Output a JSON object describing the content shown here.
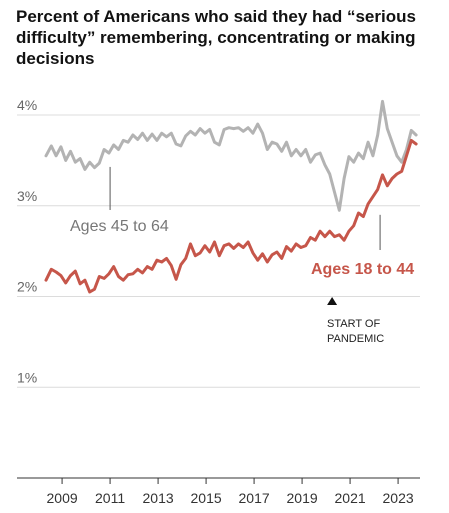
{
  "chart_data": {
    "type": "line",
    "title": "Percent of Americans who said they had “serious difficulty” remembering, concentrating or making decisions",
    "xlabel": "",
    "ylabel": "",
    "xlim": [
      2008.33,
      2023.83
    ],
    "ylim": [
      0,
      4
    ],
    "y_ticks": [
      {
        "value": 1,
        "label": "1%"
      },
      {
        "value": 2,
        "label": "2%"
      },
      {
        "value": 3,
        "label": "3%"
      },
      {
        "value": 4,
        "label": "4%"
      }
    ],
    "x_ticks": [
      {
        "value": 2009,
        "label": "2009"
      },
      {
        "value": 2011,
        "label": "2011"
      },
      {
        "value": 2013,
        "label": "2013"
      },
      {
        "value": 2015,
        "label": "2015"
      },
      {
        "value": 2017,
        "label": "2017"
      },
      {
        "value": 2019,
        "label": "2019"
      },
      {
        "value": 2021,
        "label": "2021"
      },
      {
        "value": 2023,
        "label": "2023"
      }
    ],
    "grid": true,
    "series": [
      {
        "name": "Ages 45 to 64",
        "color": "#b3b3b3",
        "points": [
          [
            2008.33,
            3.55
          ],
          [
            2008.55,
            3.66
          ],
          [
            2008.75,
            3.55
          ],
          [
            2008.95,
            3.65
          ],
          [
            2009.15,
            3.5
          ],
          [
            2009.35,
            3.6
          ],
          [
            2009.55,
            3.48
          ],
          [
            2009.75,
            3.52
          ],
          [
            2009.95,
            3.4
          ],
          [
            2010.15,
            3.48
          ],
          [
            2010.35,
            3.42
          ],
          [
            2010.55,
            3.47
          ],
          [
            2010.75,
            3.62
          ],
          [
            2010.95,
            3.58
          ],
          [
            2011.15,
            3.67
          ],
          [
            2011.35,
            3.62
          ],
          [
            2011.55,
            3.72
          ],
          [
            2011.75,
            3.7
          ],
          [
            2011.95,
            3.78
          ],
          [
            2012.15,
            3.73
          ],
          [
            2012.35,
            3.8
          ],
          [
            2012.55,
            3.72
          ],
          [
            2012.75,
            3.79
          ],
          [
            2012.95,
            3.72
          ],
          [
            2013.15,
            3.8
          ],
          [
            2013.35,
            3.76
          ],
          [
            2013.55,
            3.8
          ],
          [
            2013.75,
            3.68
          ],
          [
            2013.95,
            3.66
          ],
          [
            2014.15,
            3.77
          ],
          [
            2014.35,
            3.82
          ],
          [
            2014.55,
            3.78
          ],
          [
            2014.75,
            3.85
          ],
          [
            2014.95,
            3.8
          ],
          [
            2015.15,
            3.84
          ],
          [
            2015.35,
            3.7
          ],
          [
            2015.55,
            3.67
          ],
          [
            2015.75,
            3.84
          ],
          [
            2015.95,
            3.86
          ],
          [
            2016.15,
            3.85
          ],
          [
            2016.35,
            3.86
          ],
          [
            2016.55,
            3.82
          ],
          [
            2016.75,
            3.86
          ],
          [
            2016.95,
            3.8
          ],
          [
            2017.15,
            3.9
          ],
          [
            2017.35,
            3.8
          ],
          [
            2017.55,
            3.62
          ],
          [
            2017.75,
            3.7
          ],
          [
            2017.95,
            3.68
          ],
          [
            2018.15,
            3.6
          ],
          [
            2018.35,
            3.7
          ],
          [
            2018.55,
            3.55
          ],
          [
            2018.75,
            3.62
          ],
          [
            2018.95,
            3.55
          ],
          [
            2019.15,
            3.62
          ],
          [
            2019.35,
            3.48
          ],
          [
            2019.55,
            3.56
          ],
          [
            2019.75,
            3.58
          ],
          [
            2019.95,
            3.45
          ],
          [
            2020.15,
            3.35
          ],
          [
            2020.35,
            3.15
          ],
          [
            2020.55,
            2.95
          ],
          [
            2020.75,
            3.3
          ],
          [
            2020.95,
            3.54
          ],
          [
            2021.15,
            3.48
          ],
          [
            2021.35,
            3.58
          ],
          [
            2021.55,
            3.52
          ],
          [
            2021.75,
            3.7
          ],
          [
            2021.95,
            3.55
          ],
          [
            2022.15,
            3.78
          ],
          [
            2022.35,
            4.15
          ],
          [
            2022.55,
            3.85
          ],
          [
            2022.75,
            3.7
          ],
          [
            2022.95,
            3.55
          ],
          [
            2023.15,
            3.48
          ],
          [
            2023.35,
            3.62
          ],
          [
            2023.55,
            3.83
          ],
          [
            2023.75,
            3.78
          ]
        ]
      },
      {
        "name": "Ages 18 to 44",
        "color": "#c6564a",
        "points": [
          [
            2008.33,
            2.18
          ],
          [
            2008.55,
            2.3
          ],
          [
            2008.75,
            2.27
          ],
          [
            2008.95,
            2.23
          ],
          [
            2009.15,
            2.15
          ],
          [
            2009.35,
            2.23
          ],
          [
            2009.55,
            2.28
          ],
          [
            2009.75,
            2.14
          ],
          [
            2009.95,
            2.18
          ],
          [
            2010.15,
            2.05
          ],
          [
            2010.35,
            2.08
          ],
          [
            2010.55,
            2.22
          ],
          [
            2010.75,
            2.2
          ],
          [
            2010.95,
            2.25
          ],
          [
            2011.15,
            2.33
          ],
          [
            2011.35,
            2.22
          ],
          [
            2011.55,
            2.18
          ],
          [
            2011.75,
            2.24
          ],
          [
            2011.95,
            2.25
          ],
          [
            2012.15,
            2.3
          ],
          [
            2012.35,
            2.26
          ],
          [
            2012.55,
            2.33
          ],
          [
            2012.75,
            2.3
          ],
          [
            2012.95,
            2.4
          ],
          [
            2013.15,
            2.38
          ],
          [
            2013.35,
            2.42
          ],
          [
            2013.55,
            2.34
          ],
          [
            2013.75,
            2.19
          ],
          [
            2013.95,
            2.35
          ],
          [
            2014.15,
            2.42
          ],
          [
            2014.35,
            2.58
          ],
          [
            2014.55,
            2.45
          ],
          [
            2014.75,
            2.48
          ],
          [
            2014.95,
            2.56
          ],
          [
            2015.15,
            2.49
          ],
          [
            2015.35,
            2.6
          ],
          [
            2015.55,
            2.45
          ],
          [
            2015.75,
            2.56
          ],
          [
            2015.95,
            2.58
          ],
          [
            2016.15,
            2.53
          ],
          [
            2016.35,
            2.58
          ],
          [
            2016.55,
            2.54
          ],
          [
            2016.75,
            2.6
          ],
          [
            2016.95,
            2.48
          ],
          [
            2017.15,
            2.4
          ],
          [
            2017.35,
            2.47
          ],
          [
            2017.55,
            2.38
          ],
          [
            2017.75,
            2.46
          ],
          [
            2017.95,
            2.49
          ],
          [
            2018.15,
            2.42
          ],
          [
            2018.35,
            2.55
          ],
          [
            2018.55,
            2.5
          ],
          [
            2018.75,
            2.58
          ],
          [
            2018.95,
            2.54
          ],
          [
            2019.15,
            2.56
          ],
          [
            2019.35,
            2.65
          ],
          [
            2019.55,
            2.62
          ],
          [
            2019.75,
            2.72
          ],
          [
            2019.95,
            2.66
          ],
          [
            2020.15,
            2.72
          ],
          [
            2020.35,
            2.66
          ],
          [
            2020.55,
            2.68
          ],
          [
            2020.75,
            2.62
          ],
          [
            2020.95,
            2.72
          ],
          [
            2021.15,
            2.78
          ],
          [
            2021.35,
            2.92
          ],
          [
            2021.55,
            2.88
          ],
          [
            2021.75,
            3.02
          ],
          [
            2021.95,
            3.1
          ],
          [
            2022.15,
            3.18
          ],
          [
            2022.35,
            3.34
          ],
          [
            2022.55,
            3.22
          ],
          [
            2022.75,
            3.3
          ],
          [
            2022.95,
            3.35
          ],
          [
            2023.15,
            3.38
          ],
          [
            2023.35,
            3.55
          ],
          [
            2023.55,
            3.72
          ],
          [
            2023.75,
            3.68
          ]
        ]
      }
    ],
    "annotations": [
      {
        "text": "Ages 45 to 64",
        "points_to": [
          2011.0,
          3.45
        ],
        "color": "#777777"
      },
      {
        "text": "Ages 18 to 44",
        "points_to": [
          2022.25,
          2.9
        ],
        "color": "#c6564a",
        "bold": true
      },
      {
        "text": "START OF",
        "text2": "PANDEMIC",
        "marker_at": [
          2020.25,
          2.0
        ],
        "marker": "triangle-up"
      }
    ]
  }
}
